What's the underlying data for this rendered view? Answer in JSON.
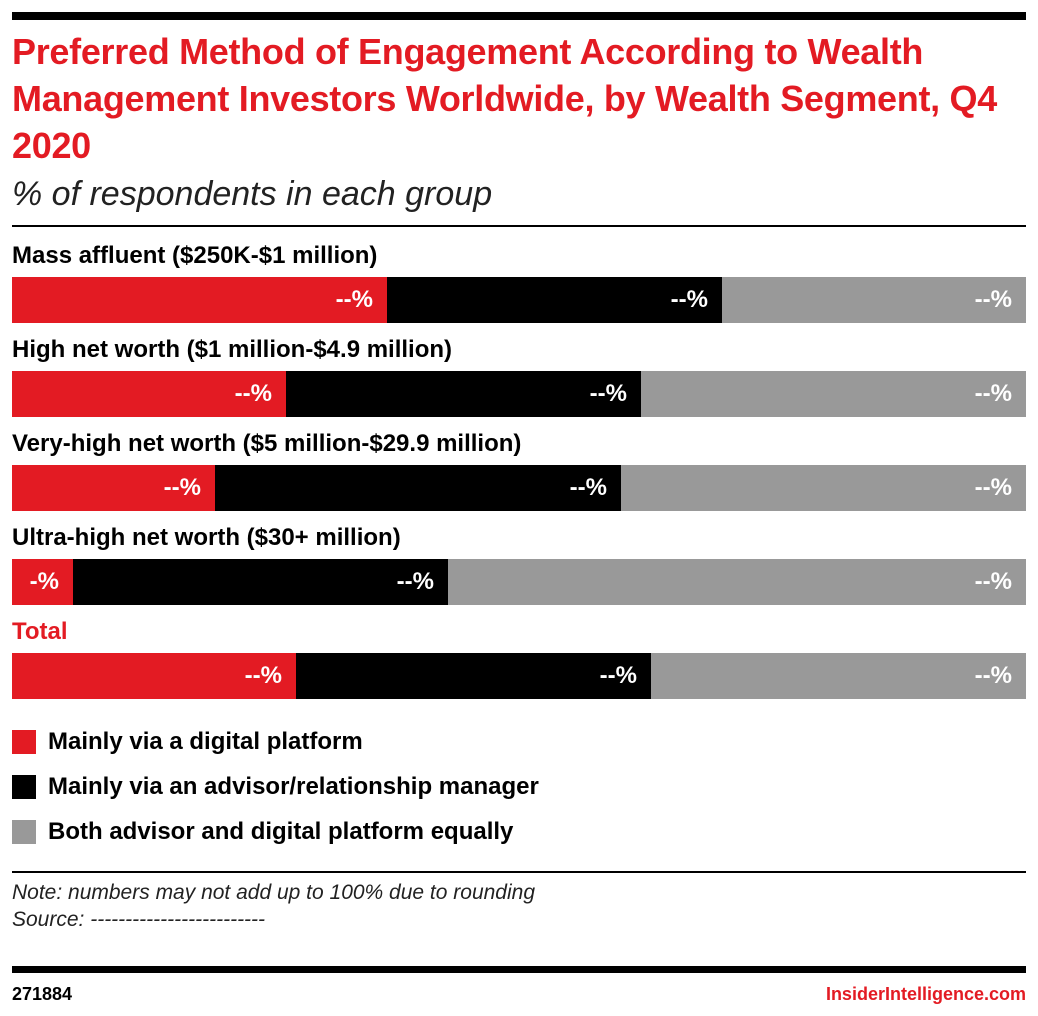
{
  "title": "Preferred Method of Engagement According to Wealth Management Investors Worldwide, by Wealth Segment, Q4 2020",
  "subtitle": "% of respondents in each group",
  "colors": {
    "digital": "#e31b23",
    "advisor": "#000000",
    "both": "#999999",
    "accent": "#e31b23"
  },
  "chart_data": {
    "type": "bar",
    "orientation": "horizontal",
    "stacked": true,
    "percent_stacked": true,
    "categories": [
      "Mass affluent ($250K-$1 million)",
      "High net worth ($1 million-$4.9 million)",
      "Very-high net worth ($5 million-$29.9 million)",
      "Ultra-high net worth ($30+ million)",
      "Total"
    ],
    "series": [
      {
        "name": "Mainly via a digital platform",
        "values": [
          37,
          27,
          20,
          6,
          28
        ],
        "labels": [
          "--%",
          "--%",
          "--%",
          "-%",
          "--%"
        ]
      },
      {
        "name": "Mainly via an advisor/relationship manager",
        "values": [
          33,
          35,
          40,
          37,
          35
        ],
        "labels": [
          "--%",
          "--%",
          "--%",
          "--%",
          "--%"
        ]
      },
      {
        "name": "Both advisor and digital platform equally",
        "values": [
          30,
          38,
          40,
          57,
          37
        ],
        "labels": [
          "--%",
          "--%",
          "--%",
          "--%",
          "--%"
        ]
      }
    ],
    "legend_position": "bottom",
    "grid": false
  },
  "note": "Note: numbers may not add up to 100% due to rounding",
  "source": "Source: -------------------------",
  "chart_id": "271884",
  "brand": "InsiderIntelligence.com"
}
